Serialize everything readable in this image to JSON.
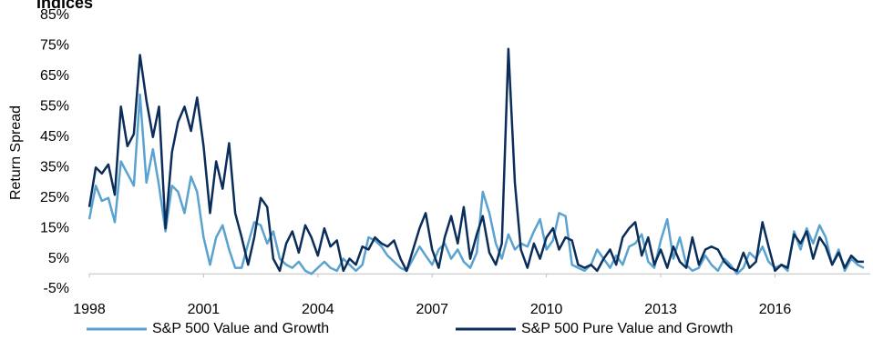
{
  "chart_data": {
    "type": "line",
    "title": "Indices",
    "ylabel": "Return Spread",
    "xlim": [
      1998,
      2018.5
    ],
    "xticks": [
      1998,
      2001,
      2004,
      2007,
      2010,
      2013,
      2016
    ],
    "ylim": [
      -5,
      85
    ],
    "yticks": [
      {
        "value": -5,
        "label": "-5%"
      },
      {
        "value": 5,
        "label": "5%"
      },
      {
        "value": 15,
        "label": "15%"
      },
      {
        "value": 25,
        "label": "25%"
      },
      {
        "value": 35,
        "label": "35%"
      },
      {
        "value": 45,
        "label": "45%"
      },
      {
        "value": 55,
        "label": "55%"
      },
      {
        "value": 65,
        "label": "65%"
      },
      {
        "value": 75,
        "label": "75%"
      },
      {
        "value": 85,
        "label": "85%"
      }
    ],
    "x": [
      1998,
      1998.17,
      1998.33,
      1998.5,
      1998.67,
      1998.83,
      1999,
      1999.17,
      1999.33,
      1999.5,
      1999.67,
      1999.83,
      2000,
      2000.17,
      2000.33,
      2000.5,
      2000.67,
      2000.83,
      2001,
      2001.17,
      2001.33,
      2001.5,
      2001.67,
      2001.83,
      2002,
      2002.17,
      2002.33,
      2002.5,
      2002.67,
      2002.83,
      2003,
      2003.17,
      2003.33,
      2003.5,
      2003.67,
      2003.83,
      2004,
      2004.17,
      2004.33,
      2004.5,
      2004.67,
      2004.83,
      2005,
      2005.17,
      2005.33,
      2005.5,
      2005.67,
      2005.83,
      2006,
      2006.17,
      2006.33,
      2006.5,
      2006.67,
      2006.83,
      2007,
      2007.17,
      2007.33,
      2007.5,
      2007.67,
      2007.83,
      2008,
      2008.17,
      2008.33,
      2008.5,
      2008.67,
      2008.83,
      2009,
      2009.17,
      2009.33,
      2009.5,
      2009.67,
      2009.83,
      2010,
      2010.17,
      2010.33,
      2010.5,
      2010.67,
      2010.83,
      2011,
      2011.17,
      2011.33,
      2011.5,
      2011.67,
      2011.83,
      2012,
      2012.17,
      2012.33,
      2012.5,
      2012.67,
      2012.83,
      2013,
      2013.17,
      2013.33,
      2013.5,
      2013.67,
      2013.83,
      2014,
      2014.17,
      2014.33,
      2014.5,
      2014.67,
      2014.83,
      2015,
      2015.17,
      2015.33,
      2015.5,
      2015.67,
      2015.83,
      2016,
      2016.17,
      2016.33,
      2016.5,
      2016.67,
      2016.83,
      2017,
      2017.17,
      2017.33,
      2017.5,
      2017.67,
      2017.83,
      2018,
      2018.17,
      2018.33
    ],
    "series": [
      {
        "name": "S&P 500 Value and Growth",
        "color": "#5aa2cf",
        "values": [
          18,
          29,
          24,
          25,
          17,
          37,
          33,
          29,
          59,
          30,
          41,
          29,
          14,
          29,
          27,
          20,
          32,
          27,
          12,
          3,
          12,
          16,
          8,
          2,
          2,
          10,
          17,
          16,
          10,
          14,
          5,
          3,
          2,
          4,
          1,
          0,
          2,
          4,
          2,
          1,
          5,
          3,
          1,
          3,
          12,
          11,
          9,
          6,
          4,
          2,
          1,
          5,
          9,
          6,
          3,
          8,
          10,
          5,
          8,
          4,
          2,
          7,
          27,
          20,
          10,
          5,
          13,
          8,
          10,
          9,
          14,
          18,
          8,
          11,
          20,
          19,
          3,
          2,
          1,
          3,
          8,
          5,
          2,
          6,
          3,
          9,
          10,
          13,
          4,
          2,
          11,
          18,
          5,
          12,
          3,
          1,
          2,
          6,
          3,
          1,
          5,
          3,
          0,
          2,
          7,
          5,
          9,
          4,
          2,
          3,
          1,
          14,
          8,
          15,
          10,
          16,
          12,
          3,
          8,
          1,
          5,
          3,
          2
        ]
      },
      {
        "name": "S&P 500 Pure Value and Growth",
        "color": "#0b2d5a",
        "values": [
          22,
          35,
          33,
          36,
          26,
          55,
          42,
          46,
          72,
          57,
          45,
          55,
          15,
          40,
          50,
          55,
          47,
          58,
          42,
          20,
          37,
          28,
          43,
          20,
          12,
          3,
          12,
          25,
          22,
          5,
          1,
          10,
          14,
          7,
          16,
          12,
          6,
          15,
          9,
          11,
          1,
          5,
          3,
          9,
          8,
          12,
          10,
          9,
          11,
          5,
          1,
          8,
          15,
          20,
          8,
          2,
          12,
          19,
          10,
          22,
          5,
          13,
          19,
          7,
          3,
          10,
          74,
          30,
          8,
          2,
          10,
          5,
          12,
          15,
          8,
          12,
          11,
          3,
          2,
          3,
          1,
          5,
          8,
          3,
          12,
          15,
          17,
          6,
          12,
          3,
          8,
          2,
          9,
          4,
          2,
          12,
          3,
          8,
          9,
          8,
          4,
          2,
          1,
          7,
          2,
          4,
          17,
          9,
          1,
          3,
          2,
          13,
          10,
          14,
          5,
          12,
          9,
          3,
          7,
          2,
          6,
          4,
          4
        ]
      }
    ]
  }
}
